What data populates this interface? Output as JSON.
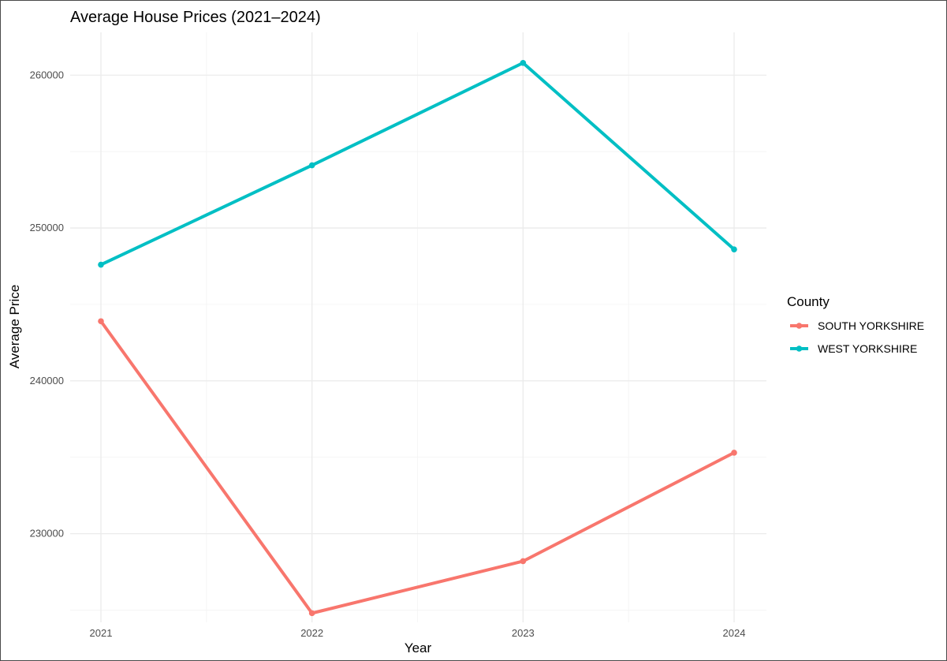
{
  "chart_data": {
    "type": "line",
    "title": "Average House Prices (2021–2024)",
    "xlabel": "Year",
    "ylabel": "Average Price",
    "categories": [
      "2021",
      "2022",
      "2023",
      "2024"
    ],
    "yticks": [
      230000,
      240000,
      250000,
      260000
    ],
    "yticklabels": [
      "230000",
      "240000",
      "250000",
      "260000"
    ],
    "ylim": [
      224200,
      262800
    ],
    "grid": true,
    "legend": {
      "title": "County",
      "placement": "right"
    },
    "series": [
      {
        "name": "SOUTH YORKSHIRE",
        "color": "#f8766d",
        "values": [
          243900,
          224800,
          228200,
          235300
        ]
      },
      {
        "name": "WEST YORKSHIRE",
        "color": "#00bfc4",
        "values": [
          247600,
          254100,
          260800,
          248600
        ]
      }
    ]
  }
}
